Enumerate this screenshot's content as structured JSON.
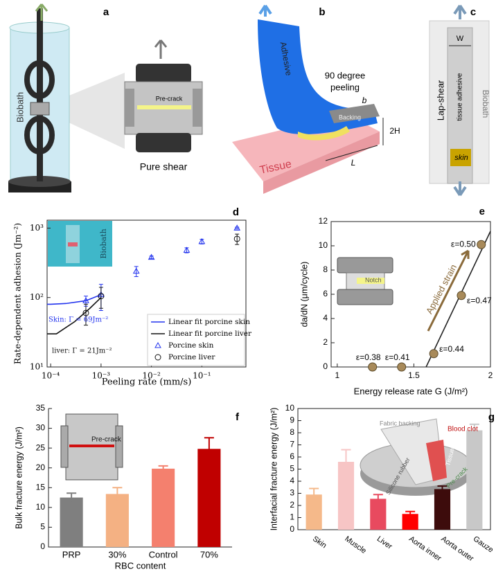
{
  "illustrations": {
    "a": {
      "label": "a",
      "texts": [
        "Biobath",
        "Pre-crack",
        "Pure shear"
      ]
    },
    "b": {
      "label": "b",
      "texts": [
        "Adhesive",
        "90 degree",
        "peeling",
        "Backing",
        "b",
        "2H",
        "L",
        "Tissue"
      ]
    },
    "c": {
      "label": "c",
      "texts": [
        "W",
        "Lap-shear",
        "tissue adhesive",
        "Biobath",
        "skin"
      ]
    }
  },
  "chart_data": [
    {
      "type": "scatter",
      "panel_label": "d",
      "xlabel": "Peeling rate (mm/s)",
      "ylabel": "Rate-dependent adhesion (Jm⁻²)",
      "xscale": "log",
      "yscale": "log",
      "xlim": [
        8.5e-05,
        0.75
      ],
      "ylim": [
        10,
        1300
      ],
      "xticks": [
        {
          "value": 0.0001,
          "label": "10⁻⁴"
        },
        {
          "value": 0.001,
          "label": "10⁻³"
        },
        {
          "value": 0.01,
          "label": "10⁻²"
        },
        {
          "value": 0.1,
          "label": "10⁻¹"
        }
      ],
      "yticks": [
        {
          "value": 10,
          "label": "10¹"
        },
        {
          "value": 100,
          "label": "10²"
        },
        {
          "value": 1000,
          "label": "10³"
        }
      ],
      "legend": "lower right",
      "annotations": [
        "Biobath",
        "Skin: Γ = 69Jm⁻²",
        "liver: Γ = 21Jm⁻²"
      ],
      "series": [
        {
          "name": "Linear fit porcine skin",
          "color": "#2233ee",
          "mode": "line",
          "x": [
            8.5e-05,
            0.0001,
            0.0002,
            0.0005,
            0.001
          ],
          "values": [
            80,
            80,
            82,
            90,
            110
          ]
        },
        {
          "name": "Linear fit porcine liver",
          "color": "#111111",
          "mode": "line",
          "x": [
            8.5e-05,
            0.00013,
            0.0003,
            0.0006,
            0.001
          ],
          "values": [
            30,
            30,
            45,
            70,
            100
          ]
        },
        {
          "name": "Porcine skin",
          "color": "#2233ee",
          "mode": "markers",
          "marker": "triangle",
          "x": [
            0.0005,
            0.001,
            0.005,
            0.01,
            0.05,
            0.1,
            0.5
          ],
          "values": [
            90,
            110,
            240,
            380,
            480,
            640,
            1000
          ],
          "errors": [
            15,
            45,
            40,
            15,
            40,
            50,
            30
          ]
        },
        {
          "name": "Porcine liver",
          "color": "#111111",
          "mode": "markers",
          "marker": "circle",
          "x": [
            0.0005,
            0.001,
            0.5
          ],
          "values": [
            60,
            105,
            700
          ],
          "errors": [
            20,
            35,
            120
          ]
        }
      ]
    },
    {
      "type": "scatter",
      "panel_label": "e",
      "xlabel": "Energy release rate G (J/m²)",
      "ylabel": "da/dN (μm/cycle)",
      "xlim": [
        0.96,
        2.0
      ],
      "ylim": [
        0,
        12
      ],
      "xticks": [
        1,
        1.5,
        2
      ],
      "yticks": [
        0,
        2,
        4,
        6,
        8,
        10,
        12
      ],
      "annotations": [
        "Notch",
        "Applied strain"
      ],
      "series": [
        {
          "color": "#222222",
          "mode": "line",
          "x": [
            1.58,
            2.0
          ],
          "values": [
            0,
            11.2
          ]
        },
        {
          "color": "#a88a5a",
          "mode": "markers",
          "marker": "circle",
          "x": [
            1.23,
            1.42,
            1.63,
            1.81,
            1.94
          ],
          "values": [
            0,
            0,
            1.1,
            5.9,
            10.1
          ],
          "labels": [
            "ε=0.38",
            "ε=0.41",
            "ε=0.44",
            "ε=0.47",
            "ε=0.50"
          ]
        }
      ]
    },
    {
      "type": "bar",
      "panel_label": "f",
      "xlabel": "RBC content",
      "ylabel": "Bulk fracture energy (J/m²)",
      "categories": [
        "PRP",
        "30%",
        "Control",
        "70%"
      ],
      "values": [
        12.5,
        13.4,
        19.8,
        24.8
      ],
      "errors": [
        1.1,
        1.6,
        0.7,
        2.8
      ],
      "colors": [
        "#7f7f7f",
        "#f4b183",
        "#f4806e",
        "#c00000"
      ],
      "ylim": [
        0,
        35
      ],
      "yticks": [
        0,
        5,
        10,
        15,
        20,
        25,
        30,
        35
      ],
      "annotations": [
        "Pre-crack"
      ]
    },
    {
      "type": "bar",
      "panel_label": "g",
      "ylabel": "Interfacial fracture energy (J/m²)",
      "categories": [
        "Skin",
        "Muscle",
        "Liver",
        "Aorta inner",
        "Aorta outer",
        "Gauze"
      ],
      "values": [
        2.9,
        5.6,
        2.55,
        1.3,
        3.35,
        8.2
      ],
      "errors": [
        0.5,
        1.0,
        0.35,
        0.2,
        0.25,
        0.5
      ],
      "colors": [
        "#f5b98a",
        "#f7c5c5",
        "#e84a5f",
        "#ff0000",
        "#3d0c0c",
        "#c8c8c8"
      ],
      "ylim": [
        0,
        10
      ],
      "yticks": [
        0,
        1,
        2,
        3,
        4,
        5,
        6,
        7,
        8,
        9,
        10
      ],
      "annotations": [
        "Fabric backing",
        "Blood clot",
        "Silicone rubber",
        "Tissue",
        "Pre-crack"
      ]
    }
  ]
}
